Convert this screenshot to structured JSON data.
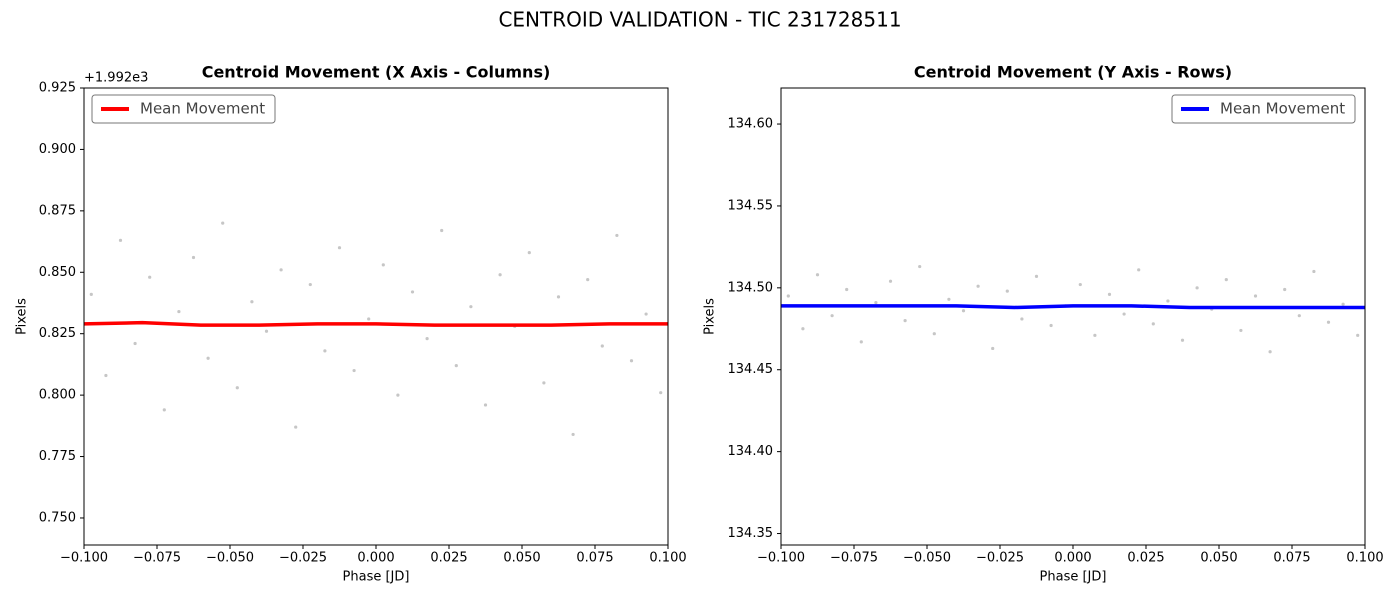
{
  "title": "CENTROID VALIDATION - TIC 231728511",
  "chart_data": [
    {
      "type": "scatter",
      "title": "Centroid Movement (X Axis - Columns)",
      "x_label": "Phase [JD]",
      "y_label": "Pixels",
      "y_offset_label": "+1.992e3",
      "xlim": [
        -0.1,
        0.1
      ],
      "ylim": [
        0.739,
        0.925
      ],
      "legend": "upper-left",
      "grid": false,
      "xticks": [
        {
          "value": -0.1,
          "label": "−0.100"
        },
        {
          "value": -0.075,
          "label": "−0.075"
        },
        {
          "value": -0.05,
          "label": "−0.050"
        },
        {
          "value": -0.025,
          "label": "−0.025"
        },
        {
          "value": 0,
          "label": "0.000"
        },
        {
          "value": 0.025,
          "label": "0.025"
        },
        {
          "value": 0.05,
          "label": "0.050"
        },
        {
          "value": 0.075,
          "label": "0.075"
        },
        {
          "value": 0.1,
          "label": "0.100"
        }
      ],
      "yticks": [
        {
          "value": 0.75,
          "label": "0.750"
        },
        0.775,
        {
          "value": 0.8,
          "label": "0.800"
        },
        0.825,
        {
          "value": 0.85,
          "label": "0.850"
        },
        0.875,
        {
          "value": 0.9,
          "label": "0.900"
        },
        0.925
      ],
      "points": {
        "color": "#808080",
        "x": [
          -0.0975,
          -0.0925,
          -0.0875,
          -0.0825,
          -0.0775,
          -0.0725,
          -0.0675,
          -0.0625,
          -0.0575,
          -0.0525,
          -0.0475,
          -0.0425,
          -0.0375,
          -0.0325,
          -0.0275,
          -0.0225,
          -0.0175,
          -0.0125,
          -0.0075,
          -0.0025,
          0.0025,
          0.0075,
          0.0125,
          0.0175,
          0.0225,
          0.0275,
          0.0325,
          0.0375,
          0.0425,
          0.0475,
          0.0525,
          0.0575,
          0.0625,
          0.0675,
          0.0725,
          0.0775,
          0.0825,
          0.0875,
          0.0925,
          0.0975
        ],
        "y": [
          0.841,
          0.808,
          0.863,
          0.821,
          0.848,
          0.794,
          0.834,
          0.856,
          0.815,
          0.87,
          0.803,
          0.838,
          0.826,
          0.851,
          0.787,
          0.845,
          0.818,
          0.86,
          0.81,
          0.831,
          0.853,
          0.8,
          0.842,
          0.823,
          0.867,
          0.812,
          0.836,
          0.796,
          0.849,
          0.828,
          0.858,
          0.805,
          0.84,
          0.784,
          0.847,
          0.82,
          0.865,
          0.814,
          0.833,
          0.801
        ]
      },
      "series": [
        {
          "name": "Mean Movement",
          "color": "#ff0000",
          "x": [
            -0.1,
            -0.08,
            -0.06,
            -0.04,
            -0.02,
            0,
            0.02,
            0.04,
            0.06,
            0.08,
            0.1
          ],
          "values": [
            0.829,
            0.8295,
            0.8285,
            0.8285,
            0.829,
            0.829,
            0.8285,
            0.8285,
            0.8285,
            0.829,
            0.829
          ]
        }
      ]
    },
    {
      "type": "scatter",
      "title": "Centroid Movement (Y Axis - Rows)",
      "x_label": "Phase [JD]",
      "y_label": "Pixels",
      "xlim": [
        -0.1,
        0.1
      ],
      "ylim": [
        134.343,
        134.622
      ],
      "legend": "upper-right",
      "grid": false,
      "xticks": [
        {
          "value": -0.1,
          "label": "−0.100"
        },
        {
          "value": -0.075,
          "label": "−0.075"
        },
        {
          "value": -0.05,
          "label": "−0.050"
        },
        {
          "value": -0.025,
          "label": "−0.025"
        },
        {
          "value": 0,
          "label": "0.000"
        },
        {
          "value": 0.025,
          "label": "0.025"
        },
        {
          "value": 0.05,
          "label": "0.050"
        },
        {
          "value": 0.075,
          "label": "0.075"
        },
        {
          "value": 0.1,
          "label": "0.100"
        }
      ],
      "yticks": [
        134.35,
        {
          "value": 134.4,
          "label": "134.40"
        },
        134.45,
        {
          "value": 134.5,
          "label": "134.50"
        },
        134.55,
        {
          "value": 134.6,
          "label": "134.60"
        }
      ],
      "points": {
        "color": "#808080",
        "x": [
          -0.0975,
          -0.0925,
          -0.0875,
          -0.0825,
          -0.0775,
          -0.0725,
          -0.0675,
          -0.0625,
          -0.0575,
          -0.0525,
          -0.0475,
          -0.0425,
          -0.0375,
          -0.0325,
          -0.0275,
          -0.0225,
          -0.0175,
          -0.0125,
          -0.0075,
          -0.0025,
          0.0025,
          0.0075,
          0.0125,
          0.0175,
          0.0225,
          0.0275,
          0.0325,
          0.0375,
          0.0425,
          0.0475,
          0.0525,
          0.0575,
          0.0625,
          0.0675,
          0.0725,
          0.0775,
          0.0825,
          0.0875,
          0.0925,
          0.0975
        ],
        "y": [
          134.495,
          134.475,
          134.508,
          134.483,
          134.499,
          134.467,
          134.491,
          134.504,
          134.48,
          134.513,
          134.472,
          134.493,
          134.486,
          134.501,
          134.463,
          134.498,
          134.481,
          134.507,
          134.477,
          134.489,
          134.502,
          134.471,
          134.496,
          134.484,
          134.511,
          134.478,
          134.492,
          134.468,
          134.5,
          134.487,
          134.505,
          134.474,
          134.495,
          134.461,
          134.499,
          134.483,
          134.51,
          134.479,
          134.49,
          134.471
        ]
      },
      "series": [
        {
          "name": "Mean Movement",
          "color": "#0000ff",
          "x": [
            -0.1,
            -0.08,
            -0.06,
            -0.04,
            -0.02,
            0,
            0.02,
            0.04,
            0.06,
            0.08,
            0.1
          ],
          "values": [
            134.489,
            134.489,
            134.489,
            134.489,
            134.488,
            134.489,
            134.489,
            134.488,
            134.488,
            134.488,
            134.488
          ]
        }
      ]
    }
  ]
}
